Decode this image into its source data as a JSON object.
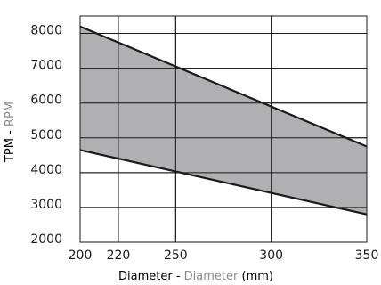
{
  "chart_data": {
    "type": "area",
    "xlabel": {
      "main": "Diameter",
      "sep": " - ",
      "alt": "Diameter",
      "unit": " (mm)"
    },
    "ylabel": {
      "main": "TPM",
      "sep": " - ",
      "alt": "RPM"
    },
    "xlim": [
      200,
      350
    ],
    "ylim": [
      2000,
      8500
    ],
    "x_ticks": [
      200,
      220,
      250,
      300,
      350
    ],
    "y_ticks": [
      2000,
      3000,
      4000,
      5000,
      6000,
      7000,
      8000
    ],
    "grid": true,
    "series": [
      {
        "values": [
          {
            "x": 200,
            "y": 8200
          },
          {
            "x": 350,
            "y": 4750
          }
        ]
      },
      {
        "values": [
          {
            "x": 200,
            "y": 4650
          },
          {
            "x": 350,
            "y": 2800
          }
        ]
      }
    ],
    "fill_color": "#a9a9ab",
    "line_color": "#1a1a1a",
    "alt_label_color": "#8a8a8a"
  }
}
